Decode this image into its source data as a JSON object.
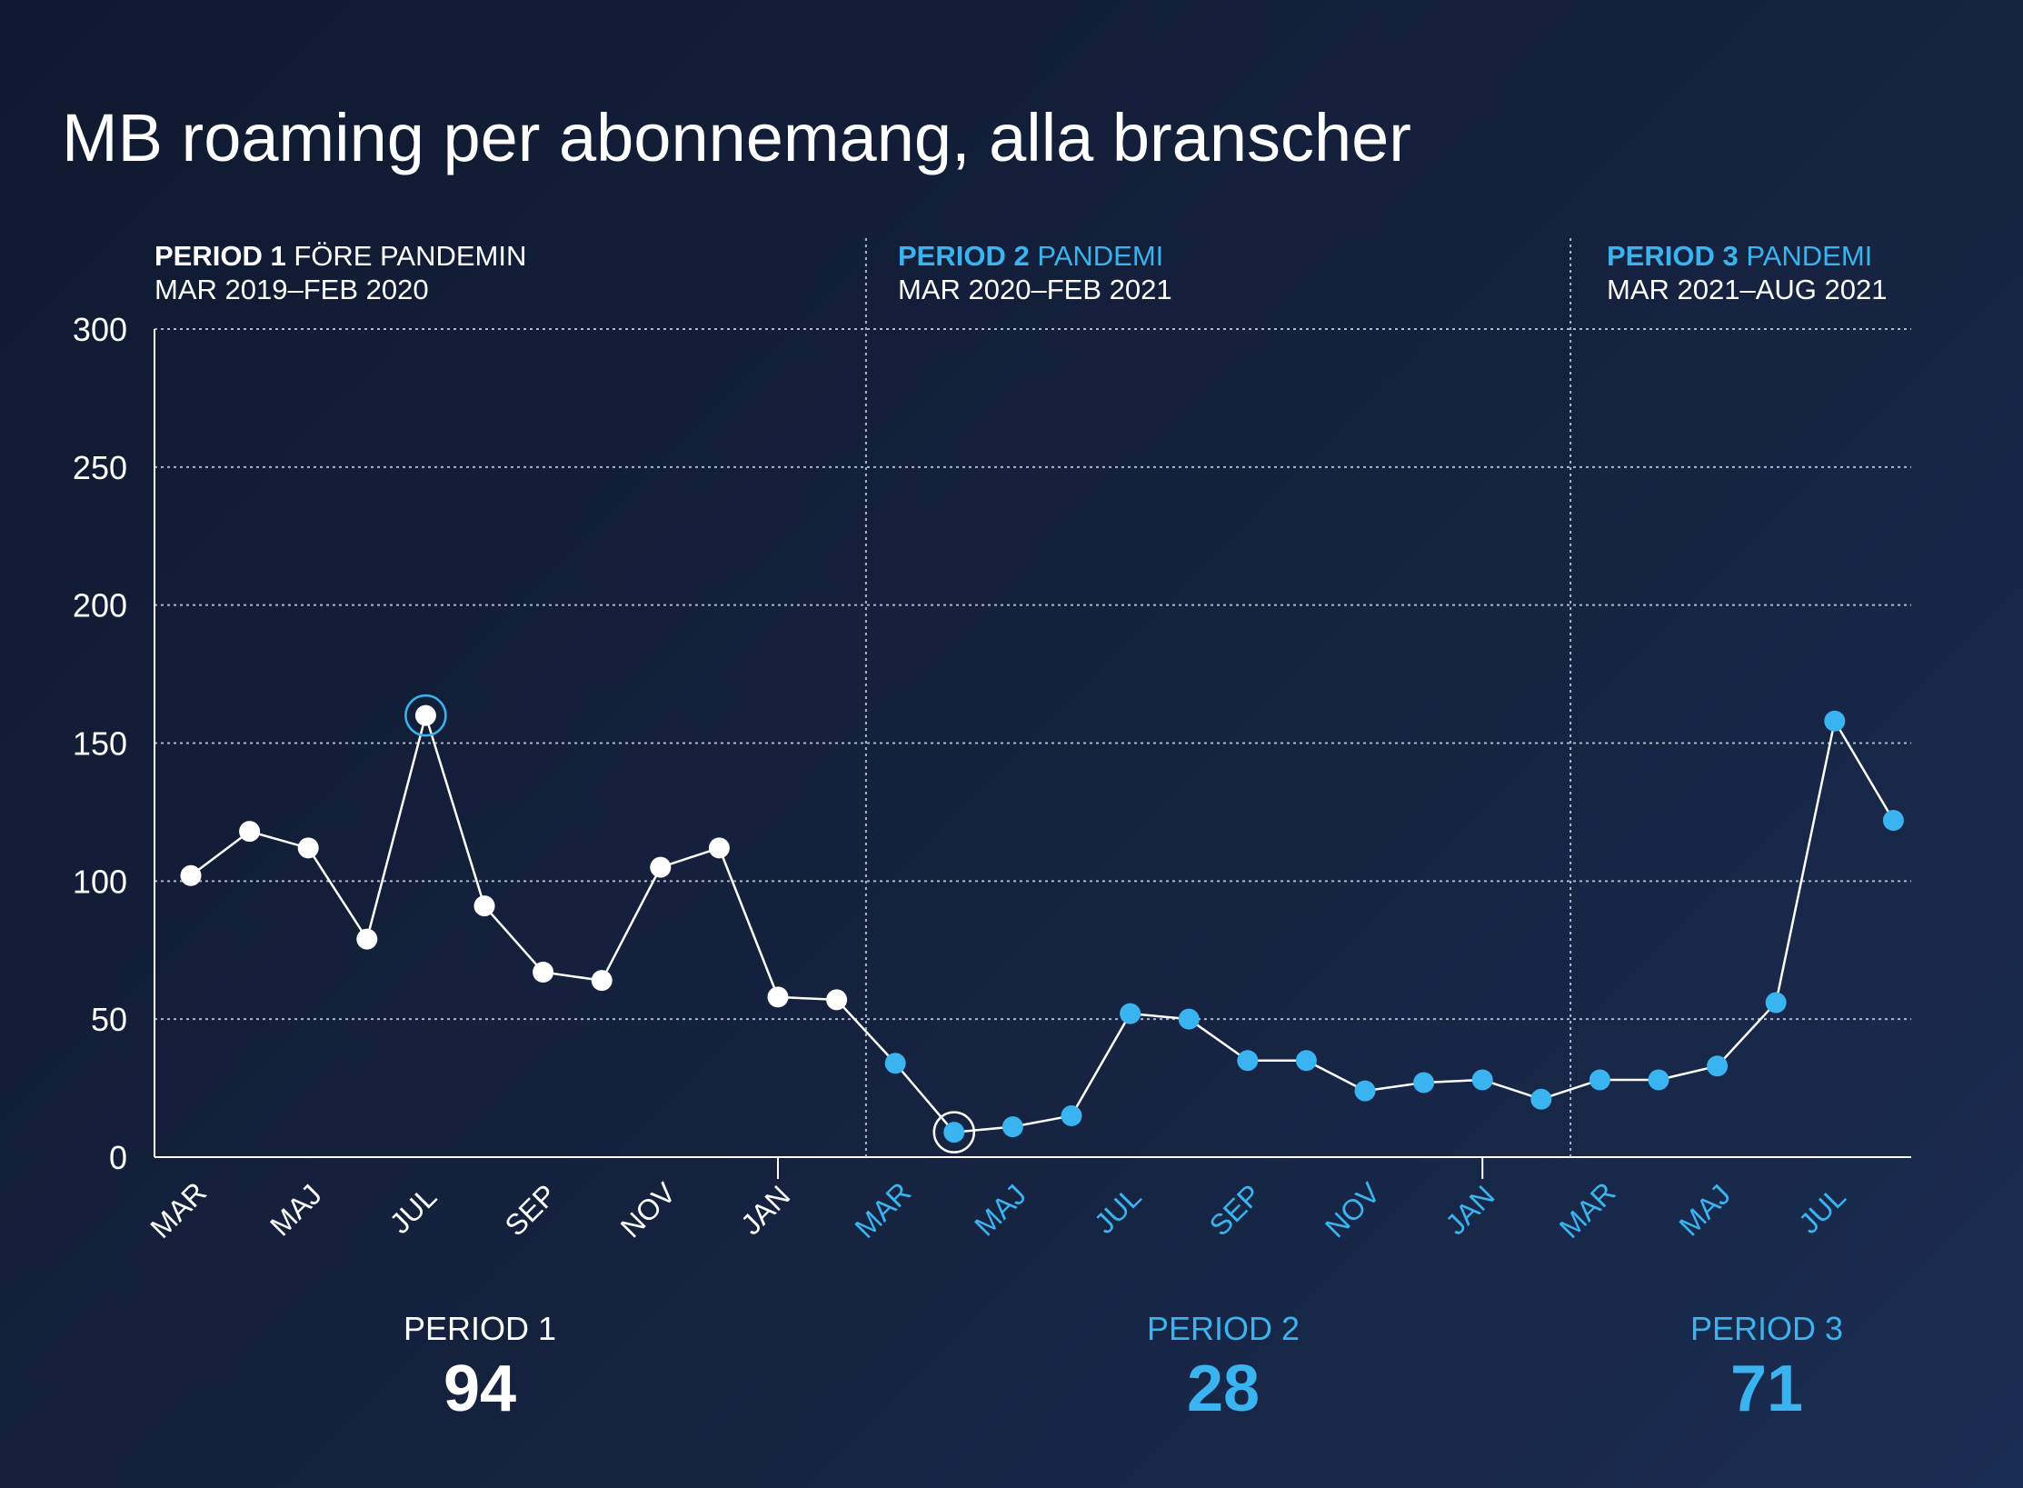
{
  "colors": {
    "background": "#131f3a",
    "white": "#ffffff",
    "accent": "#3ab4f0"
  },
  "chart_data": {
    "type": "line",
    "title": "MB roaming per abonnemang, alla branscher",
    "xlabel": "",
    "ylabel": "",
    "ylim": [
      0,
      300
    ],
    "yticks": [
      0,
      50,
      100,
      150,
      200,
      250,
      300
    ],
    "grid": true,
    "x": [
      "2019-03",
      "2019-04",
      "2019-05",
      "2019-06",
      "2019-07",
      "2019-08",
      "2019-09",
      "2019-10",
      "2019-11",
      "2019-12",
      "2020-01",
      "2020-02",
      "2020-03",
      "2020-04",
      "2020-05",
      "2020-06",
      "2020-07",
      "2020-08",
      "2020-09",
      "2020-10",
      "2020-11",
      "2020-12",
      "2021-01",
      "2021-02",
      "2021-03",
      "2021-04",
      "2021-05",
      "2021-06",
      "2021-07",
      "2021-08"
    ],
    "values": [
      102,
      118,
      112,
      79,
      160,
      91,
      67,
      64,
      105,
      112,
      58,
      57,
      34,
      9,
      11,
      15,
      52,
      50,
      35,
      35,
      24,
      27,
      28,
      21,
      28,
      28,
      33,
      56,
      158,
      122
    ],
    "period_of_point": [
      1,
      1,
      1,
      1,
      1,
      1,
      1,
      1,
      1,
      1,
      1,
      1,
      2,
      2,
      2,
      2,
      2,
      2,
      2,
      2,
      2,
      2,
      2,
      2,
      3,
      3,
      3,
      3,
      3,
      3
    ],
    "highlighted_points": [
      4,
      13
    ],
    "x_tick_labels": [
      {
        "index": 0,
        "label": "MAR",
        "period": 1
      },
      {
        "index": 2,
        "label": "MAJ",
        "period": 1
      },
      {
        "index": 4,
        "label": "JUL",
        "period": 1
      },
      {
        "index": 6,
        "label": "SEP",
        "period": 1
      },
      {
        "index": 8,
        "label": "NOV",
        "period": 1
      },
      {
        "index": 10,
        "label": "JAN",
        "period": 1
      },
      {
        "index": 12,
        "label": "MAR",
        "period": 2
      },
      {
        "index": 14,
        "label": "MAJ",
        "period": 2
      },
      {
        "index": 16,
        "label": "JUL",
        "period": 2
      },
      {
        "index": 18,
        "label": "SEP",
        "period": 2
      },
      {
        "index": 20,
        "label": "NOV",
        "period": 2
      },
      {
        "index": 22,
        "label": "JAN",
        "period": 2
      },
      {
        "index": 24,
        "label": "MAR",
        "period": 3
      },
      {
        "index": 26,
        "label": "MAJ",
        "period": 3
      },
      {
        "index": 28,
        "label": "JUL",
        "period": 3
      }
    ],
    "year_ticks_at_index": [
      10,
      22
    ],
    "period_dividers_at_index": [
      11.5,
      23.5
    ],
    "periods": [
      {
        "name_bold": "PERIOD 1",
        "name_rest": " FÖRE PANDEMIN",
        "range": "MAR 2019–FEB 2020",
        "summary_label": "PERIOD 1",
        "summary_value": "94",
        "color": "#ffffff"
      },
      {
        "name_bold": "PERIOD 2",
        "name_rest": " PANDEMI",
        "range": "MAR 2020–FEB 2021",
        "summary_label": "PERIOD 2",
        "summary_value": "28",
        "color": "#3ab4f0"
      },
      {
        "name_bold": "PERIOD 3",
        "name_rest": " PANDEMI",
        "range": "MAR 2021–AUG 2021",
        "summary_label": "PERIOD 3",
        "summary_value": "71",
        "color": "#3ab4f0"
      }
    ]
  }
}
